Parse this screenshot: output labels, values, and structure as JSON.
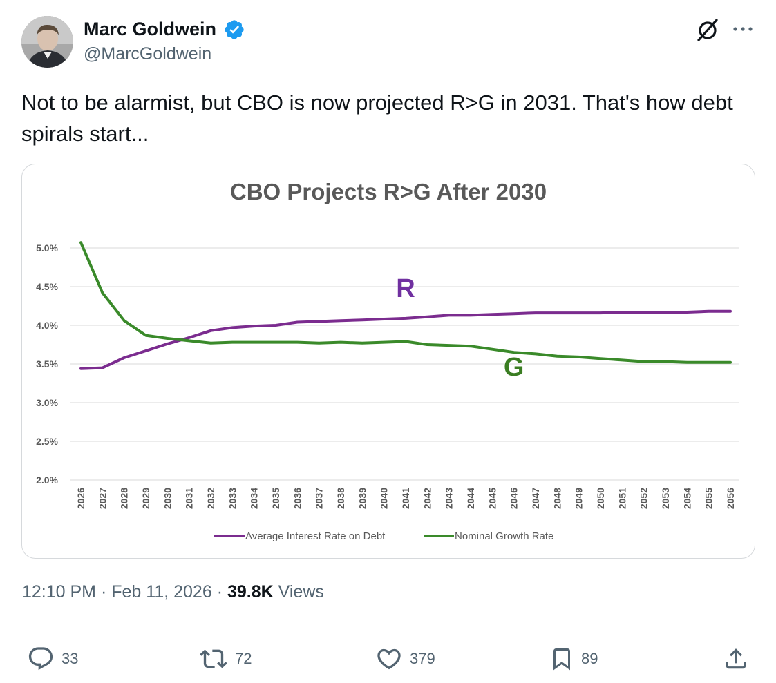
{
  "author": {
    "display_name": "Marc Goldwein",
    "handle": "@MarcGoldwein",
    "verified": true,
    "avatar_icon": "profile-photo",
    "verified_color": "#1d9bf0"
  },
  "header_actions": {
    "grok_icon": "grok-icon",
    "more_icon": "more-icon"
  },
  "tweet": {
    "text": "Not to be alarmist, but CBO is now projected R>G in 2031. That's how debt spirals start..."
  },
  "meta": {
    "time": "12:10 PM",
    "separator": "·",
    "date": "Feb 11, 2026",
    "views_count": "39.8K",
    "views_label": "Views"
  },
  "actions": {
    "replies": "33",
    "retweets": "72",
    "likes": "379",
    "bookmarks": "89"
  },
  "chart_data": {
    "type": "line",
    "title": "CBO Projects R>G After 2030",
    "xlabel": "",
    "ylabel": "",
    "x": [
      "2026",
      "2027",
      "2028",
      "2029",
      "2030",
      "2031",
      "2032",
      "2033",
      "2034",
      "2035",
      "2036",
      "2037",
      "2038",
      "2039",
      "2040",
      "2041",
      "2042",
      "2043",
      "2044",
      "2045",
      "2046",
      "2047",
      "2048",
      "2049",
      "2050",
      "2051",
      "2052",
      "2053",
      "2054",
      "2055",
      "2056"
    ],
    "ylim": [
      2.0,
      5.0
    ],
    "yticks": [
      "2.0%",
      "2.5%",
      "3.0%",
      "3.5%",
      "4.0%",
      "4.5%",
      "5.0%"
    ],
    "grid": true,
    "legend_position": "bottom",
    "annotations": [
      {
        "text": "R",
        "series": 0,
        "x": "2041"
      },
      {
        "text": "G",
        "series": 1,
        "x": "2046"
      }
    ],
    "series": [
      {
        "name": "Average Interest Rate on Debt",
        "color": "#7b2c8f",
        "label_color": "#7030a0",
        "values": [
          3.44,
          3.45,
          3.58,
          3.67,
          3.76,
          3.84,
          3.93,
          3.97,
          3.99,
          4.0,
          4.04,
          4.05,
          4.06,
          4.07,
          4.08,
          4.09,
          4.11,
          4.13,
          4.13,
          4.14,
          4.15,
          4.16,
          4.16,
          4.16,
          4.16,
          4.17,
          4.17,
          4.17,
          4.17,
          4.18,
          4.18
        ]
      },
      {
        "name": "Nominal Growth Rate",
        "color": "#3a8a2a",
        "label_color": "#3a7d22",
        "values": [
          5.07,
          4.42,
          4.06,
          3.87,
          3.83,
          3.8,
          3.77,
          3.78,
          3.78,
          3.78,
          3.78,
          3.77,
          3.78,
          3.77,
          3.78,
          3.79,
          3.75,
          3.74,
          3.73,
          3.69,
          3.65,
          3.63,
          3.6,
          3.59,
          3.57,
          3.55,
          3.53,
          3.53,
          3.52,
          3.52,
          3.52
        ]
      }
    ]
  }
}
